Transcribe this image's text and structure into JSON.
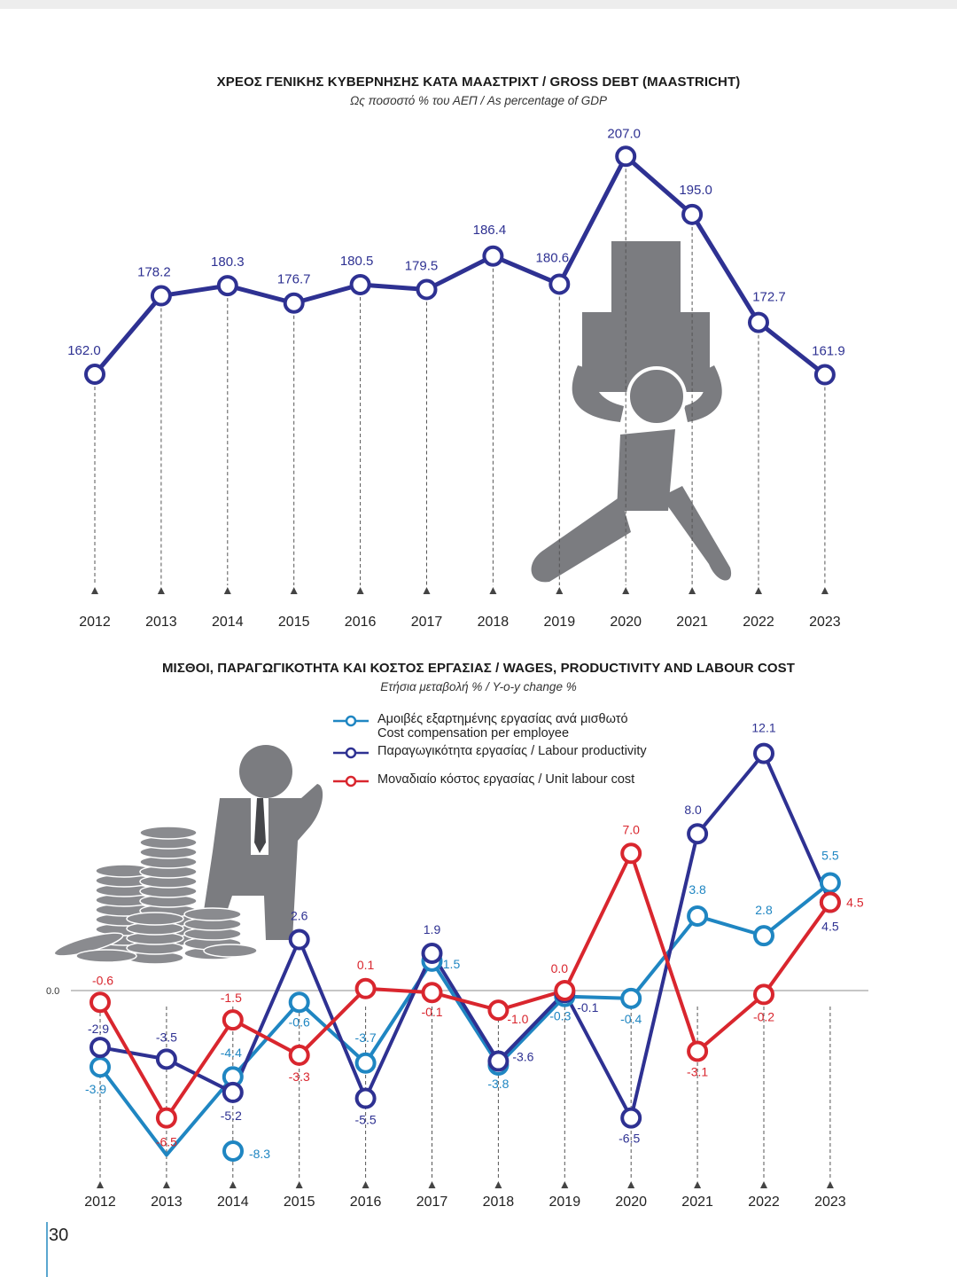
{
  "page_number": "30",
  "chart_data": [
    {
      "type": "line",
      "title": "ΧΡΕΟΣ ΓΕΝΙΚΗΣ ΚΥΒΕΡΝΗΣΗΣ ΚΑΤΑ ΜΑΑΣΤΡΙΧΤ / GROSS DEBT (MAASTRICHT)",
      "subtitle": "Ως ποσοστό % του ΑΕΠ / As percentage of GDP",
      "categories": [
        "2012",
        "2013",
        "2014",
        "2015",
        "2016",
        "2017",
        "2018",
        "2019",
        "2020",
        "2021",
        "2022",
        "2023"
      ],
      "series": [
        {
          "name": "Gross debt",
          "color": "#2e3192",
          "values": [
            162.0,
            178.2,
            180.3,
            176.7,
            180.5,
            179.5,
            186.4,
            180.6,
            207.0,
            195.0,
            172.7,
            161.9
          ],
          "labels": [
            "162.0",
            "178.2",
            "180.3",
            "176.7",
            "180.5",
            "179.5",
            "186.4",
            "180.6",
            "207.0",
            "195.0",
            "172.7",
            "161.9"
          ]
        }
      ],
      "ylim": [
        140,
        212
      ]
    },
    {
      "type": "line",
      "title": "ΜΙΣΘΟΙ, ΠΑΡΑΓΩΓΙΚΟΤΗΤΑ ΚΑΙ ΚΟΣΤΟΣ ΕΡΓΑΣΙΑΣ / WAGES, PRODUCTIVITY AND LABOUR COST",
      "subtitle": "Ετήσια μεταβολή % / Y-o-y change %",
      "zero_label": "0.0",
      "categories": [
        "2012",
        "2013",
        "2014",
        "2015",
        "2016",
        "2017",
        "2018",
        "2019",
        "2020",
        "2021",
        "2022",
        "2023"
      ],
      "ylim": [
        -10.5,
        13
      ],
      "series": [
        {
          "key": "comp",
          "name": "Αμοιβές εξαρτημένης εργασίας ανά μισθωτό",
          "name_en": "Cost compensation per employee",
          "color": "#1f86c2",
          "values": [
            -3.9,
            -8.3,
            -4.4,
            -0.6,
            -3.7,
            1.5,
            -3.8,
            -0.3,
            -0.4,
            3.8,
            2.8,
            5.5
          ],
          "labels": [
            "-3.9",
            "-8.3",
            "-4.4",
            "-0.6",
            "-3.7",
            "1.5",
            "-3.8",
            "-0.3",
            "-0.4",
            "3.8",
            "2.8",
            "5.5"
          ]
        },
        {
          "key": "prod",
          "name": "Παραγωγικότητα εργασίας / Labour productivity",
          "color": "#2e3192",
          "values": [
            -2.9,
            -3.5,
            -5.2,
            2.6,
            -5.5,
            1.9,
            -3.6,
            -0.1,
            -6.5,
            8.0,
            12.1,
            4.5
          ],
          "labels": [
            "-2.9",
            "-3.5",
            "-5.2",
            "2.6",
            "-5.5",
            "1.9",
            "-3.6",
            "-0.1",
            "-6.5",
            "8.0",
            "12.1",
            "4.5"
          ]
        },
        {
          "key": "ulc",
          "name": "Μοναδιαίο κόστος εργασίας / Unit labour cost",
          "color": "#d9262e",
          "values": [
            -0.6,
            -6.5,
            -1.5,
            -3.3,
            0.1,
            -0.1,
            -1.0,
            0.0,
            7.0,
            -3.1,
            -0.2,
            4.5
          ],
          "labels": [
            "-0.6",
            "-6.5",
            "-1.5",
            "-3.3",
            "0.1",
            "-0.1",
            "-1.0",
            "0.0",
            "7.0",
            "-3.1",
            "-0.2",
            "4.5"
          ]
        }
      ]
    }
  ]
}
